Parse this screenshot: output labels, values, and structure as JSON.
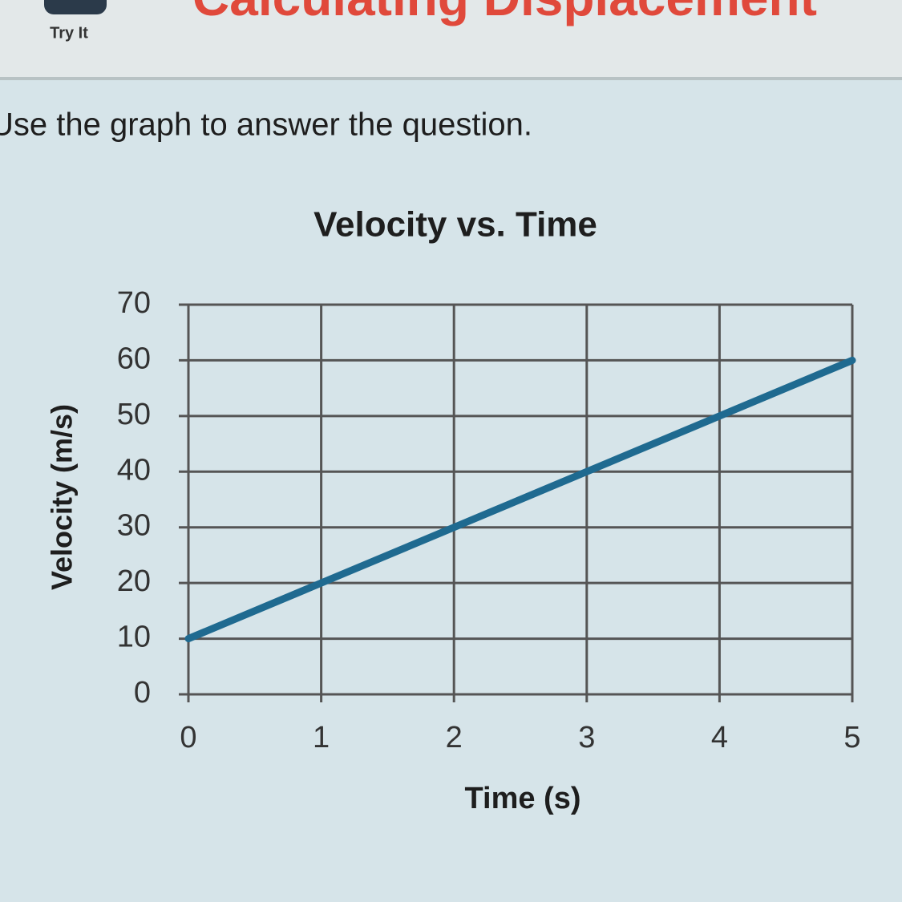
{
  "header": {
    "button_label": "Try It",
    "title": "Calculating Displacement"
  },
  "instruction": "Use the graph to answer the question.",
  "chart_data": {
    "type": "line",
    "title": "Velocity vs. Time",
    "x_label": "Time (s)",
    "y_label": "Velocity (m/s)",
    "x": [
      0,
      1,
      2,
      3,
      4,
      5
    ],
    "values": [
      10,
      20,
      30,
      40,
      50,
      60
    ],
    "color": "#1f6a90",
    "xlim": [
      0,
      5
    ],
    "ylim": [
      0,
      70
    ],
    "xticks": [
      0,
      1,
      2,
      3,
      4,
      5
    ],
    "yticks": [
      0,
      10,
      20,
      30,
      40,
      50,
      60,
      70
    ],
    "grid": true
  }
}
